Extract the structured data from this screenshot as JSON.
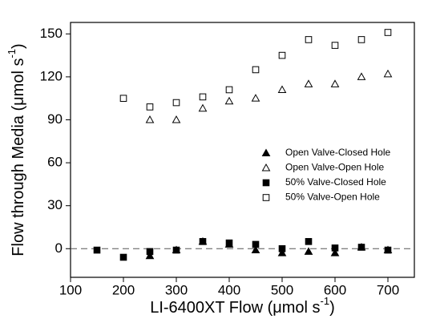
{
  "chart_data": {
    "type": "scatter",
    "x_label": {
      "text": "LI-6400XT Flow (μmol s",
      "sup": "-1",
      "end": ")"
    },
    "y_label": {
      "text": "Flow through Media (μmol s",
      "sup": "-1",
      "end": ")"
    },
    "xlim": [
      100,
      750
    ],
    "xticks": [
      100,
      200,
      300,
      400,
      500,
      600,
      700
    ],
    "ylim": [
      -20,
      158
    ],
    "yticks": [
      0,
      30,
      60,
      90,
      120,
      150
    ],
    "reference_line": 0,
    "legend": "right",
    "series": [
      {
        "name": "Open Valve-Closed Hole",
        "color": "#000000",
        "marker": "triangle-filled",
        "x": [
          250,
          300,
          350,
          400,
          450,
          500,
          550,
          600,
          650,
          700
        ],
        "values": [
          -5,
          -1,
          5,
          3,
          -1,
          -3,
          -2,
          -3,
          1,
          -1
        ]
      },
      {
        "name": "Open Valve-Open Hole",
        "color": "#000000",
        "marker": "triangle-open",
        "x": [
          250,
          300,
          350,
          400,
          450,
          500,
          550,
          600,
          650,
          700
        ],
        "values": [
          90,
          90,
          98,
          103,
          105,
          111,
          115,
          115,
          120,
          122
        ]
      },
      {
        "name": "50% Valve-Closed Hole",
        "color": "#000000",
        "marker": "square-filled",
        "x": [
          150,
          200,
          250,
          300,
          350,
          400,
          450,
          500,
          550,
          600,
          650,
          700
        ],
        "values": [
          -1,
          -6,
          -2,
          -1,
          5,
          4,
          3,
          0,
          5,
          0.5,
          1,
          -1
        ]
      },
      {
        "name": "50% Valve-Open Hole",
        "color": "#000000",
        "marker": "square-open",
        "x": [
          200,
          250,
          300,
          350,
          400,
          450,
          500,
          550,
          600,
          650,
          700
        ],
        "values": [
          105,
          99,
          102,
          106,
          111,
          125,
          135,
          146,
          142,
          146,
          151
        ]
      }
    ]
  }
}
